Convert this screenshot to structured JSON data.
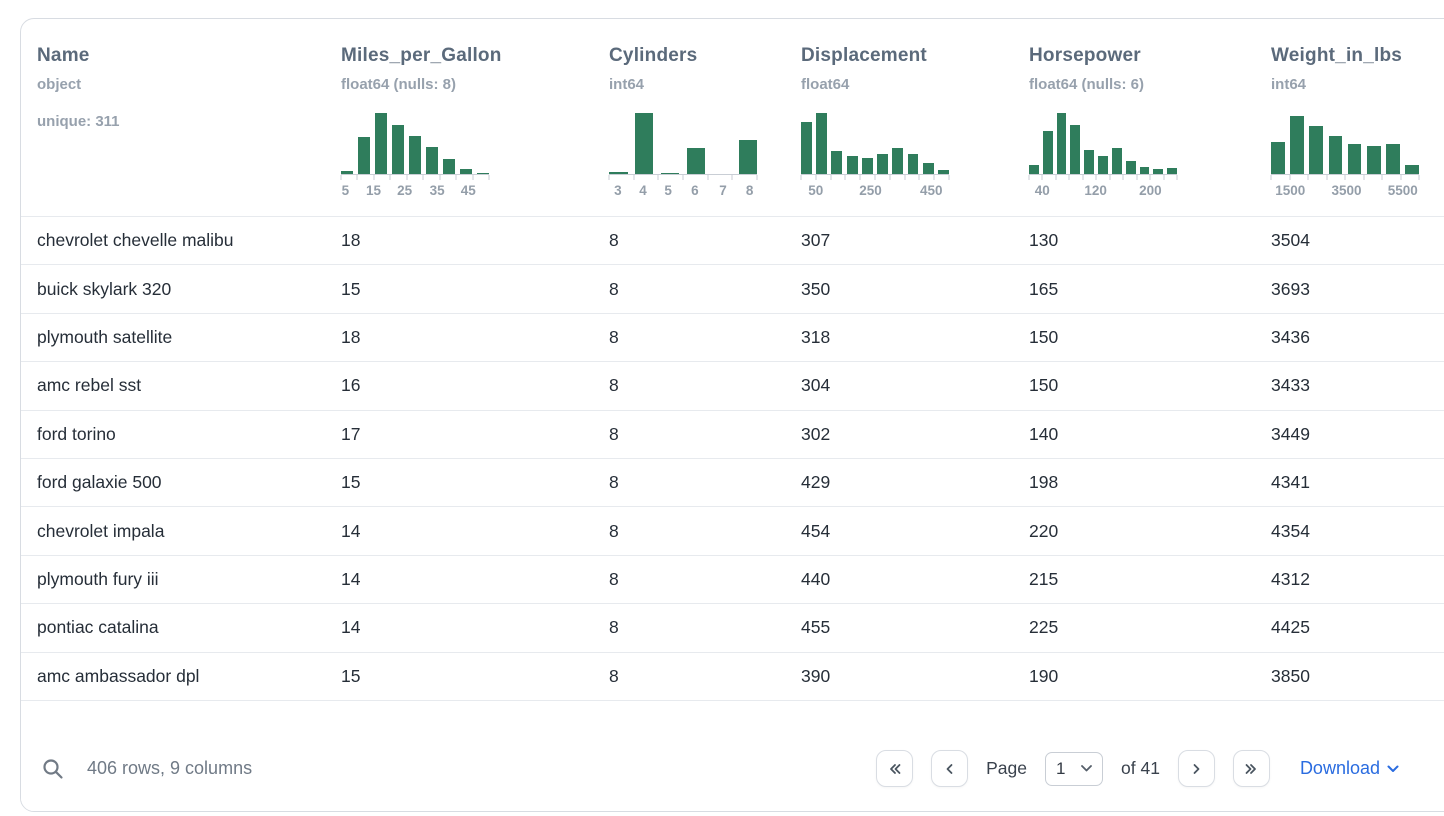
{
  "table": {
    "columns": [
      {
        "name": "Name",
        "dtype": "object",
        "meta": "unique: 311"
      },
      {
        "name": "Miles_per_Gallon",
        "dtype": "float64 (nulls: 8)",
        "hist": {
          "type": "bar",
          "values": [
            0.05,
            0.6,
            1.0,
            0.8,
            0.62,
            0.45,
            0.25,
            0.08,
            0.02
          ],
          "ticks": [
            {
              "label": "5",
              "pos": 0.03
            },
            {
              "label": "15",
              "pos": 0.22
            },
            {
              "label": "25",
              "pos": 0.43
            },
            {
              "label": "35",
              "pos": 0.65
            },
            {
              "label": "45",
              "pos": 0.86
            }
          ]
        }
      },
      {
        "name": "Cylinders",
        "dtype": "int64",
        "hist": {
          "type": "bar",
          "values": [
            0.03,
            1.0,
            0.02,
            0.42,
            0,
            0.55
          ],
          "ticks": [
            {
              "label": "3",
              "pos": 0.06
            },
            {
              "label": "4",
              "pos": 0.23
            },
            {
              "label": "5",
              "pos": 0.4
            },
            {
              "label": "6",
              "pos": 0.58
            },
            {
              "label": "7",
              "pos": 0.77
            },
            {
              "label": "8",
              "pos": 0.95
            }
          ]
        }
      },
      {
        "name": "Displacement",
        "dtype": "float64",
        "hist": {
          "type": "bar",
          "values": [
            0.85,
            1.0,
            0.38,
            0.3,
            0.26,
            0.33,
            0.42,
            0.32,
            0.18,
            0.06
          ],
          "ticks": [
            {
              "label": "50",
              "pos": 0.1
            },
            {
              "label": "250",
              "pos": 0.47
            },
            {
              "label": "450",
              "pos": 0.88
            }
          ]
        }
      },
      {
        "name": "Horsepower",
        "dtype": "float64 (nulls: 6)",
        "hist": {
          "type": "bar",
          "values": [
            0.15,
            0.7,
            1.0,
            0.8,
            0.4,
            0.3,
            0.42,
            0.22,
            0.12,
            0.08,
            0.1
          ],
          "ticks": [
            {
              "label": "40",
              "pos": 0.09
            },
            {
              "label": "120",
              "pos": 0.45
            },
            {
              "label": "200",
              "pos": 0.82
            }
          ]
        }
      },
      {
        "name": "Weight_in_lbs",
        "dtype": "int64",
        "hist": {
          "type": "bar",
          "values": [
            0.52,
            0.95,
            0.78,
            0.62,
            0.5,
            0.46,
            0.5,
            0.15
          ],
          "ticks": [
            {
              "label": "1500",
              "pos": 0.13
            },
            {
              "label": "3500",
              "pos": 0.51
            },
            {
              "label": "5500",
              "pos": 0.89
            }
          ]
        }
      }
    ],
    "rows": [
      [
        "chevrolet chevelle malibu",
        "18",
        "8",
        "307",
        "130",
        "3504"
      ],
      [
        "buick skylark 320",
        "15",
        "8",
        "350",
        "165",
        "3693"
      ],
      [
        "plymouth satellite",
        "18",
        "8",
        "318",
        "150",
        "3436"
      ],
      [
        "amc rebel sst",
        "16",
        "8",
        "304",
        "150",
        "3433"
      ],
      [
        "ford torino",
        "17",
        "8",
        "302",
        "140",
        "3449"
      ],
      [
        "ford galaxie 500",
        "15",
        "8",
        "429",
        "198",
        "4341"
      ],
      [
        "chevrolet impala",
        "14",
        "8",
        "454",
        "220",
        "4354"
      ],
      [
        "plymouth fury iii",
        "14",
        "8",
        "440",
        "215",
        "4312"
      ],
      [
        "pontiac catalina",
        "14",
        "8",
        "455",
        "225",
        "4425"
      ],
      [
        "amc ambassador dpl",
        "15",
        "8",
        "390",
        "190",
        "3850"
      ]
    ]
  },
  "footer": {
    "summary": "406 rows, 9 columns",
    "page_label": "Page",
    "page_value": "1",
    "of_label": "of 41",
    "download_label": "Download"
  },
  "colors": {
    "hist_bar": "#2f7d5c",
    "link": "#2a6ce0"
  }
}
